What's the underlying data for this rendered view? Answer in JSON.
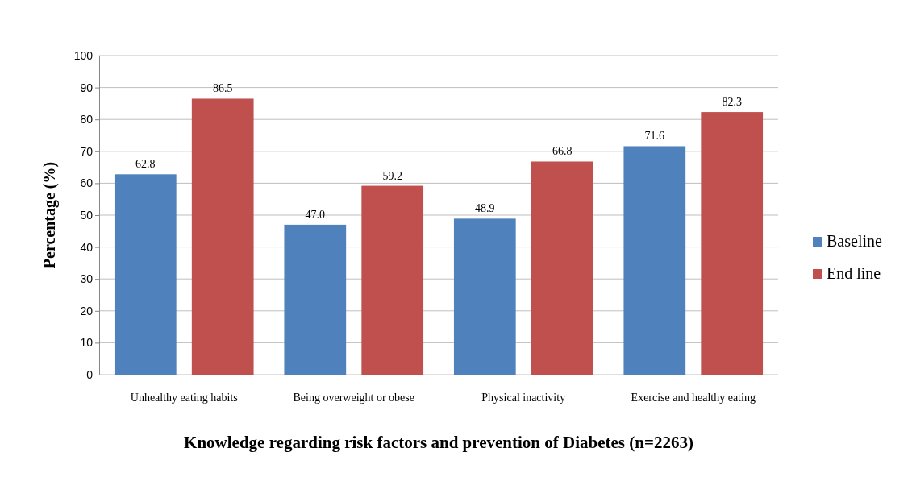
{
  "chart_data": {
    "type": "bar",
    "xlabel": "Knowledge regarding risk factors and prevention of Diabetes (n=2263)",
    "ylabel": "Percentage (%)",
    "categories": [
      "Unhealthy eating habits",
      "Being overweight or obese",
      "Physical inactivity",
      "Exercise and healthy eating"
    ],
    "series": [
      {
        "name": "Baseline",
        "color": "#4f81bd",
        "values": [
          62.8,
          47.0,
          48.9,
          71.6
        ],
        "value_labels": [
          "62.8",
          "47.0",
          "48.9",
          "71.6"
        ]
      },
      {
        "name": "End line",
        "color": "#c0504d",
        "values": [
          86.5,
          59.2,
          66.8,
          82.3
        ],
        "value_labels": [
          "86.5",
          "59.2",
          "66.8",
          "82.3"
        ]
      }
    ],
    "ylim": [
      0,
      100
    ],
    "yticks": [
      0,
      10,
      20,
      30,
      40,
      50,
      60,
      70,
      80,
      90,
      100
    ],
    "grid": "y",
    "legend": "right"
  }
}
